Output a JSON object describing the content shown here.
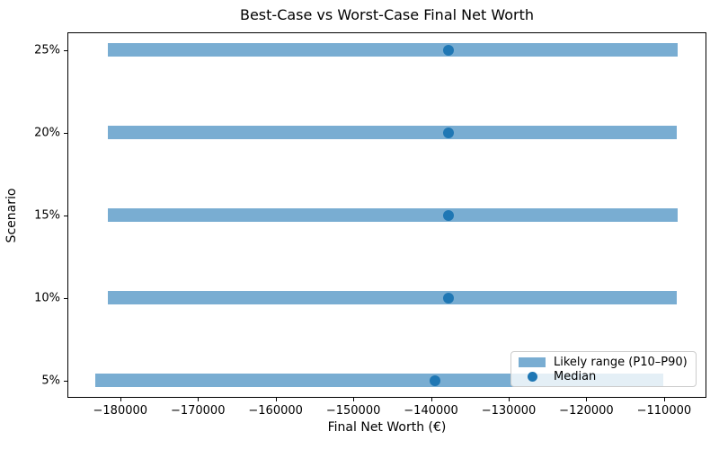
{
  "chart_data": {
    "type": "bar",
    "orientation": "horizontal",
    "title": "Best-Case vs Worst-Case Final Net Worth",
    "xlabel": "Final Net Worth (€)",
    "ylabel": "Scenario",
    "categories_bottom_to_top": [
      "5%",
      "10%",
      "15%",
      "20%",
      "25%"
    ],
    "rows_top_to_bottom": [
      {
        "label": "25%",
        "p10": -181600,
        "median": -137800,
        "p90": -108300
      },
      {
        "label": "20%",
        "p10": -181600,
        "median": -137800,
        "p90": -108400
      },
      {
        "label": "15%",
        "p10": -181600,
        "median": -137700,
        "p90": -108200
      },
      {
        "label": "10%",
        "p10": -181600,
        "median": -137800,
        "p90": -108400
      },
      {
        "label": "5%",
        "p10": -183200,
        "median": -139500,
        "p90": -110100
      }
    ],
    "xlim": [
      -186800,
      -104550
    ],
    "xticks": [
      -180000,
      -170000,
      -160000,
      -150000,
      -140000,
      -130000,
      -120000,
      -110000
    ],
    "xtick_labels": [
      "−180000",
      "−170000",
      "−160000",
      "−150000",
      "−140000",
      "−130000",
      "−120000",
      "−110000"
    ],
    "grid": false,
    "legend": {
      "position": "lower right",
      "items": [
        {
          "label": "Likely range (P10–P90)",
          "marker": "patch"
        },
        {
          "label": "Median",
          "marker": "dot"
        }
      ]
    },
    "colors": {
      "bar_fill": "rgba(31,119,180,0.6)",
      "bar_fill_hex_on_white": "#79adD2",
      "median_dot": "#1f77b4",
      "spine": "#000000"
    }
  }
}
